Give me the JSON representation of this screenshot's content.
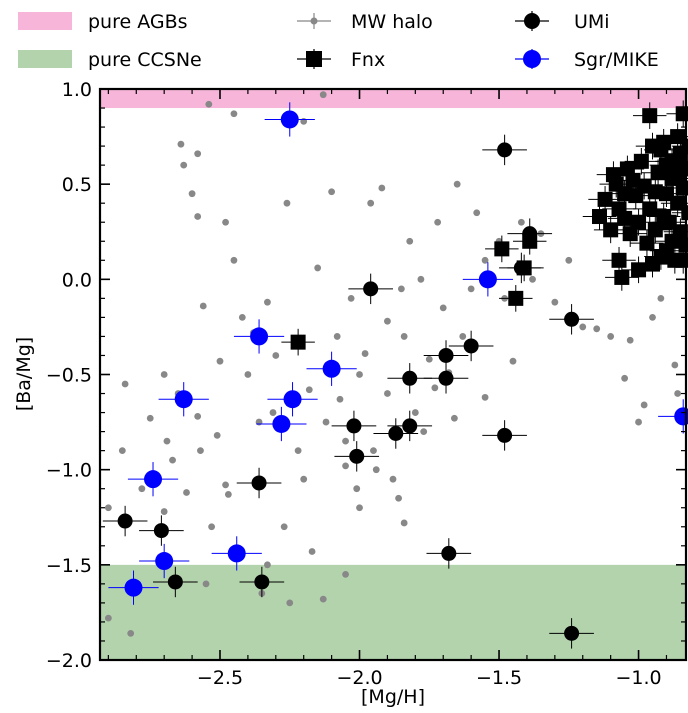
{
  "chart_data": {
    "type": "scatter",
    "xlabel": "[Mg/H]",
    "ylabel": "[Ba/Mg]",
    "xlim": [
      -2.93,
      -0.83
    ],
    "ylim": [
      -2.0,
      1.0
    ],
    "xticks": [
      -2.5,
      -2.0,
      -1.5,
      -1.0
    ],
    "yticks": [
      -2.0,
      -1.5,
      -1.0,
      -0.5,
      0.0,
      0.5,
      1.0
    ],
    "xtick_labels": [
      "−2.5",
      "−2.0",
      "−1.5",
      "−1.0"
    ],
    "ytick_labels": [
      "−2.0",
      "−1.5",
      "−1.0",
      "−0.5",
      "0.0",
      "0.5",
      "1.0"
    ],
    "grid": false,
    "legend_position": "top, above plot",
    "bands": [
      {
        "name": "pure AGBs",
        "ymin": 0.9,
        "ymax": 1.0,
        "color": "#f7b6d9"
      },
      {
        "name": "pure CCSNe",
        "ymin": -2.0,
        "ymax": -1.5,
        "color": "#b3d3ad"
      }
    ],
    "series": [
      {
        "name": "MW halo",
        "marker": "small-circle",
        "color": "#888888",
        "points": [
          [
            -2.9,
            -1.2
          ],
          [
            -2.9,
            -1.78
          ],
          [
            -2.82,
            -1.86
          ],
          [
            -2.85,
            -0.9
          ],
          [
            -2.84,
            -0.55
          ],
          [
            -2.78,
            -1.1
          ],
          [
            -2.75,
            -0.73
          ],
          [
            -2.7,
            -1.22
          ],
          [
            -2.7,
            -0.5
          ],
          [
            -2.69,
            -0.85
          ],
          [
            -2.67,
            -0.95
          ],
          [
            -2.65,
            -0.6
          ],
          [
            -2.64,
            0.71
          ],
          [
            -2.63,
            0.6
          ],
          [
            -2.62,
            -1.12
          ],
          [
            -2.6,
            0.45
          ],
          [
            -2.58,
            0.66
          ],
          [
            -2.58,
            0.33
          ],
          [
            -2.57,
            -0.9
          ],
          [
            -2.56,
            -0.14
          ],
          [
            -2.54,
            0.92
          ],
          [
            -2.55,
            -1.6
          ],
          [
            -2.53,
            -1.3
          ],
          [
            -2.51,
            -0.82
          ],
          [
            -2.5,
            -0.43
          ],
          [
            -2.48,
            0.3
          ],
          [
            -2.47,
            -1.13
          ],
          [
            -2.45,
            0.87
          ],
          [
            -2.45,
            0.1
          ],
          [
            -2.42,
            -0.2
          ],
          [
            -2.4,
            -0.5
          ],
          [
            -2.38,
            -0.28
          ],
          [
            -2.36,
            -0.75
          ],
          [
            -2.35,
            -1.65
          ],
          [
            -2.33,
            -0.12
          ],
          [
            -2.31,
            -0.7
          ],
          [
            -2.3,
            -0.4
          ],
          [
            -2.27,
            -1.3
          ],
          [
            -2.26,
            0.4
          ],
          [
            -2.25,
            -1.7
          ],
          [
            -2.22,
            -0.9
          ],
          [
            -2.2,
            -1.05
          ],
          [
            -2.2,
            0.83
          ],
          [
            -2.18,
            -0.58
          ],
          [
            -2.17,
            -1.43
          ],
          [
            -2.15,
            0.06
          ],
          [
            -2.13,
            0.97
          ],
          [
            -2.12,
            -0.75
          ],
          [
            -2.1,
            0.46
          ],
          [
            -2.08,
            -0.3
          ],
          [
            -2.07,
            -0.63
          ],
          [
            -2.05,
            -0.85
          ],
          [
            -2.05,
            -0.98
          ],
          [
            -2.03,
            -0.1
          ],
          [
            -2.01,
            -1.1
          ],
          [
            -2.0,
            -1.2
          ],
          [
            -2.0,
            -0.5
          ],
          [
            -1.98,
            -0.39
          ],
          [
            -1.96,
            0.4
          ],
          [
            -1.95,
            -0.9
          ],
          [
            -1.94,
            -1.0
          ],
          [
            -1.92,
            0.48
          ],
          [
            -1.9,
            -0.6
          ],
          [
            -1.9,
            -0.22
          ],
          [
            -1.88,
            -1.05
          ],
          [
            -1.86,
            -1.15
          ],
          [
            -1.84,
            -1.28
          ],
          [
            -1.84,
            -0.3
          ],
          [
            -1.82,
            0.2
          ],
          [
            -1.8,
            -0.7
          ],
          [
            -1.78,
            0.0
          ],
          [
            -1.77,
            -0.8
          ],
          [
            -1.75,
            -0.42
          ],
          [
            -1.73,
            -0.57
          ],
          [
            -1.72,
            0.3
          ],
          [
            -1.7,
            -0.15
          ],
          [
            -1.68,
            -0.49
          ],
          [
            -1.66,
            -0.73
          ],
          [
            -1.65,
            0.5
          ],
          [
            -1.63,
            -0.3
          ],
          [
            -1.6,
            -0.05
          ],
          [
            -1.58,
            0.35
          ],
          [
            -1.55,
            -0.62
          ],
          [
            -1.55,
            0.1
          ],
          [
            -1.5,
            0.2
          ],
          [
            -1.48,
            -0.1
          ],
          [
            -1.45,
            -0.43
          ],
          [
            -1.42,
            0.3
          ],
          [
            -1.38,
            0.0
          ],
          [
            -1.35,
            0.24
          ],
          [
            -1.3,
            -0.12
          ],
          [
            -1.25,
            0.1
          ],
          [
            -1.2,
            -0.25
          ],
          [
            -1.15,
            -0.26
          ],
          [
            -1.1,
            -0.3
          ],
          [
            -1.05,
            -0.52
          ],
          [
            -1.03,
            -0.32
          ],
          [
            -1.0,
            -0.75
          ],
          [
            -0.98,
            -0.66
          ],
          [
            -0.95,
            -0.2
          ],
          [
            -0.92,
            -0.1
          ],
          [
            -0.87,
            -0.45
          ],
          [
            -0.86,
            -0.6
          ],
          [
            -2.48,
            -1.08
          ],
          [
            -2.58,
            -0.72
          ],
          [
            -2.33,
            -1.5
          ],
          [
            -1.85,
            -0.05
          ],
          [
            -2.13,
            -1.68
          ],
          [
            -2.05,
            -1.55
          ]
        ]
      },
      {
        "name": "Fnx",
        "marker": "square",
        "color": "#000000",
        "points": [
          [
            -2.22,
            -0.33
          ],
          [
            -1.49,
            0.16
          ],
          [
            -1.44,
            -0.1
          ],
          [
            -1.41,
            0.06
          ],
          [
            -1.39,
            0.2
          ],
          [
            -1.14,
            0.33
          ],
          [
            -1.12,
            0.42
          ],
          [
            -1.1,
            0.26
          ],
          [
            -1.09,
            0.55
          ],
          [
            -1.08,
            0.5
          ],
          [
            -1.07,
            0.37
          ],
          [
            -1.07,
            0.1
          ],
          [
            -1.06,
            0.01
          ],
          [
            -1.05,
            0.45
          ],
          [
            -1.05,
            0.32
          ],
          [
            -1.04,
            0.58
          ],
          [
            -1.03,
            0.24
          ],
          [
            -1.02,
            0.52
          ],
          [
            -1.01,
            0.44
          ],
          [
            -1.0,
            0.05
          ],
          [
            -1.0,
            0.3
          ],
          [
            -0.99,
            0.62
          ],
          [
            -0.98,
            0.49
          ],
          [
            -0.97,
            0.19
          ],
          [
            -0.96,
            0.86
          ],
          [
            -0.96,
            0.37
          ],
          [
            -0.95,
            0.7
          ],
          [
            -0.95,
            0.08
          ],
          [
            -0.94,
            0.46
          ],
          [
            -0.94,
            0.26
          ],
          [
            -0.93,
            0.56
          ],
          [
            -0.92,
            0.12
          ],
          [
            -0.91,
            0.33
          ],
          [
            -0.91,
            0.72
          ],
          [
            -0.9,
            0.6
          ],
          [
            -0.9,
            0.45
          ],
          [
            -0.89,
            0.3
          ],
          [
            -0.88,
            0.53
          ],
          [
            -0.88,
            0.2
          ],
          [
            -0.87,
            0.1
          ],
          [
            -0.86,
            0.75
          ],
          [
            -0.86,
            0.4
          ],
          [
            -0.85,
            0.66
          ],
          [
            -0.85,
            0.25
          ],
          [
            -0.84,
            0.87
          ],
          [
            -0.84,
            0.48
          ],
          [
            -0.83,
            0.58
          ],
          [
            -0.83,
            0.18
          ],
          [
            -0.82,
            0.7
          ],
          [
            -0.82,
            0.35
          ],
          [
            -0.84,
            0.1
          ],
          [
            -0.86,
            0.55
          ],
          [
            -0.88,
            0.62
          ],
          [
            -0.9,
            0.15
          ],
          [
            -0.92,
            0.68
          ]
        ],
        "xerr": 0.06,
        "yerr": 0.07
      },
      {
        "name": "UMi",
        "marker": "circle",
        "color": "#000000",
        "points": [
          [
            -2.84,
            -1.27
          ],
          [
            -2.71,
            -1.32
          ],
          [
            -2.66,
            -1.59
          ],
          [
            -2.36,
            -1.07
          ],
          [
            -2.35,
            -1.59
          ],
          [
            -1.96,
            -0.05
          ],
          [
            -2.02,
            -0.77
          ],
          [
            -2.01,
            -0.93
          ],
          [
            -1.87,
            -0.81
          ],
          [
            -1.82,
            -0.52
          ],
          [
            -1.82,
            -0.77
          ],
          [
            -1.69,
            -0.4
          ],
          [
            -1.69,
            -0.52
          ],
          [
            -1.68,
            -1.44
          ],
          [
            -1.6,
            -0.35
          ],
          [
            -1.48,
            0.68
          ],
          [
            -1.48,
            -0.82
          ],
          [
            -1.42,
            0.06
          ],
          [
            -1.39,
            0.24
          ],
          [
            -1.24,
            -0.21
          ],
          [
            -1.24,
            -1.86
          ]
        ],
        "xerr": 0.08,
        "yerr": 0.08
      },
      {
        "name": "Sgr/MIKE",
        "marker": "circle",
        "color": "#0000ff",
        "points": [
          [
            -2.81,
            -1.62
          ],
          [
            -2.74,
            -1.05
          ],
          [
            -2.7,
            -1.48
          ],
          [
            -2.63,
            -0.63
          ],
          [
            -2.44,
            -1.44
          ],
          [
            -2.36,
            -0.3
          ],
          [
            -2.28,
            -0.76
          ],
          [
            -2.24,
            -0.63
          ],
          [
            -2.25,
            0.84
          ],
          [
            -2.1,
            -0.47
          ],
          [
            -1.54,
            0.0
          ],
          [
            -0.84,
            -0.72
          ]
        ],
        "xerr": 0.09,
        "yerr": 0.09
      }
    ]
  }
}
